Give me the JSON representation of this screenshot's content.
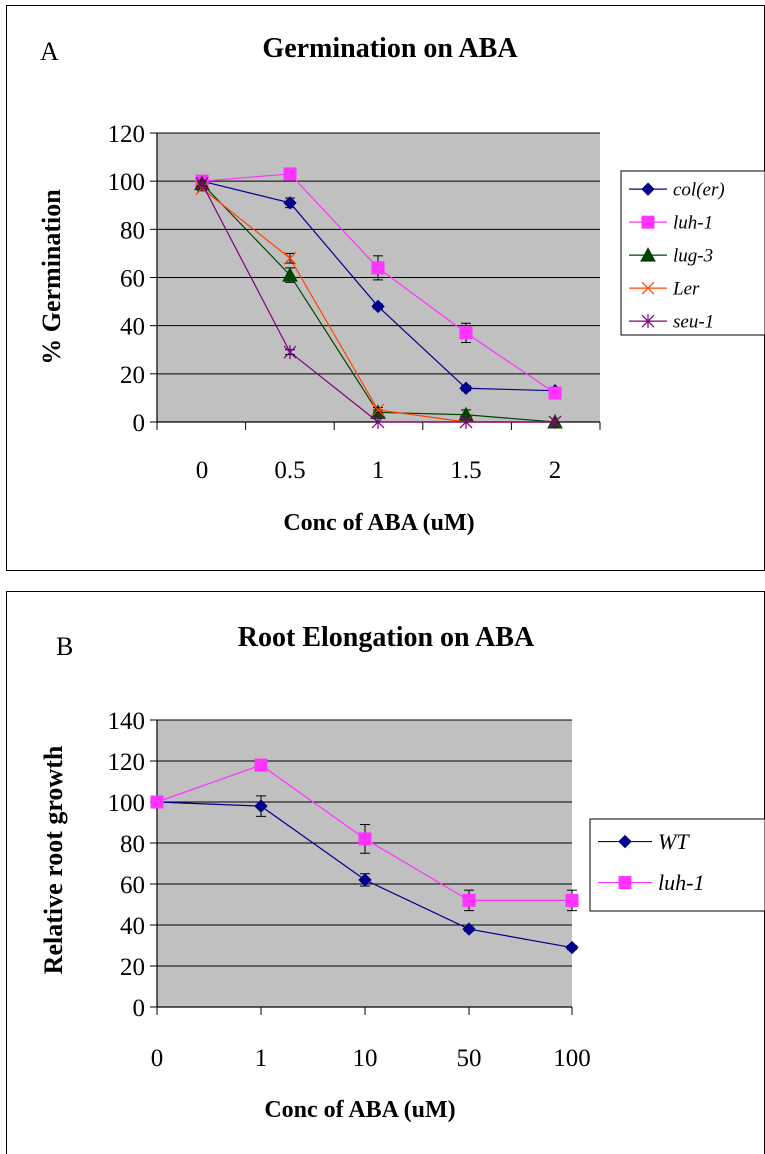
{
  "chart_data": [
    {
      "type": "line",
      "panel_label": "A",
      "title": "Germination on ABA",
      "xlabel": "Conc of ABA (uM)",
      "ylabel": "% Germination",
      "categories": [
        "0",
        "0.5",
        "1",
        "1.5",
        "2"
      ],
      "ylim": [
        0,
        120
      ],
      "yticks": [
        "0",
        "20",
        "40",
        "60",
        "80",
        "100",
        "120"
      ],
      "grid": true,
      "legend_position": "right",
      "series": [
        {
          "name": "col(er)",
          "values": [
            100,
            91,
            48,
            14,
            13
          ],
          "errors": [
            1,
            2,
            1,
            1,
            1
          ],
          "color": "#00008B",
          "marker": "diamond"
        },
        {
          "name": "luh-1",
          "values": [
            100,
            103,
            64,
            37,
            12
          ],
          "errors": [
            0,
            1,
            5,
            4,
            1
          ],
          "color": "#FF33FF",
          "marker": "square"
        },
        {
          "name": "lug-3",
          "values": [
            99,
            61,
            4,
            3,
            0
          ],
          "errors": [
            1,
            3,
            1,
            2,
            0
          ],
          "color": "#004400",
          "marker": "triangle"
        },
        {
          "name": "Ler",
          "values": [
            97,
            68,
            5,
            0,
            0
          ],
          "errors": [
            1,
            2,
            1,
            0,
            0
          ],
          "color": "#FF4400",
          "marker": "x"
        },
        {
          "name": "seu-1",
          "values": [
            99,
            29,
            0,
            0,
            0
          ],
          "errors": [
            1,
            1,
            0,
            0,
            0
          ],
          "color": "#800080",
          "marker": "star"
        }
      ]
    },
    {
      "type": "line",
      "panel_label": "B",
      "title": "Root  Elongation on ABA",
      "xlabel": "Conc of ABA (uM)",
      "ylabel": "Relative root growth",
      "categories": [
        "0",
        "1",
        "10",
        "50",
        "100"
      ],
      "ylim": [
        0,
        140
      ],
      "yticks": [
        "0",
        "20",
        "40",
        "60",
        "80",
        "100",
        "120",
        "140"
      ],
      "grid": true,
      "legend_position": "right",
      "series": [
        {
          "name": "WT",
          "values": [
            100,
            98,
            62,
            38,
            29
          ],
          "errors": [
            0,
            5,
            3,
            1,
            1
          ],
          "color": "#00008B",
          "marker": "diamond"
        },
        {
          "name": "luh-1",
          "values": [
            100,
            118,
            82,
            52,
            52
          ],
          "errors": [
            0,
            1,
            7,
            5,
            5
          ],
          "color": "#FF33FF",
          "marker": "square"
        }
      ]
    }
  ]
}
